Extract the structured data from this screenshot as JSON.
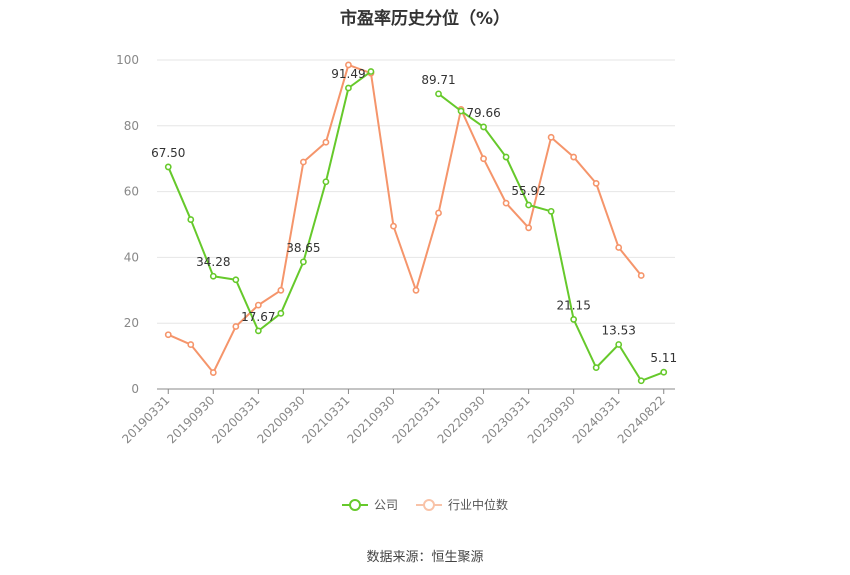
{
  "chart_data": {
    "type": "line",
    "title": "市盈率历史分位（%）",
    "ylim": [
      0,
      100
    ],
    "yticks": [
      0,
      20,
      40,
      60,
      80,
      100
    ],
    "grid": true,
    "legend_position": "bottom",
    "x_tick_labels": [
      "20190331",
      "20190930",
      "20200331",
      "20200930",
      "20210331",
      "20210930",
      "20220331",
      "20220930",
      "20230331",
      "20230930",
      "20240331",
      "20240822"
    ],
    "x_tick_indices": [
      0,
      2,
      4,
      6,
      8,
      10,
      12,
      14,
      16,
      18,
      20,
      22
    ],
    "point_count": 23,
    "series": [
      {
        "name": "公司",
        "color": "#66c92b",
        "values": [
          67.5,
          51.5,
          34.28,
          33.2,
          17.67,
          23.0,
          38.65,
          63.0,
          91.49,
          96.5,
          null,
          null,
          89.71,
          84.5,
          79.66,
          70.5,
          55.92,
          54.0,
          21.15,
          6.5,
          13.53,
          2.5,
          5.11
        ],
        "labels": [
          {
            "index": 0,
            "text": "67.50"
          },
          {
            "index": 2,
            "text": "34.28"
          },
          {
            "index": 4,
            "text": "17.67"
          },
          {
            "index": 6,
            "text": "38.65"
          },
          {
            "index": 8,
            "text": "91.49"
          },
          {
            "index": 12,
            "text": "89.71"
          },
          {
            "index": 14,
            "text": "79.66"
          },
          {
            "index": 16,
            "text": "55.92"
          },
          {
            "index": 18,
            "text": "21.15"
          },
          {
            "index": 20,
            "text": "13.53"
          },
          {
            "index": 22,
            "text": "5.11"
          }
        ]
      },
      {
        "name": "行业中位数",
        "color": "#f5956b",
        "values": [
          16.5,
          13.5,
          5.0,
          19.0,
          25.5,
          30.0,
          69.0,
          75.0,
          98.5,
          96.0,
          49.5,
          30.0,
          53.5,
          85.0,
          70.0,
          56.5,
          49.0,
          76.5,
          70.5,
          62.5,
          43.0,
          34.5,
          null
        ]
      }
    ]
  },
  "legend": {
    "items": [
      {
        "label": "公司",
        "color": "#66c92b"
      },
      {
        "label": "行业中位数",
        "color": "#f5956b"
      }
    ]
  },
  "footer": {
    "source": "数据来源：恒生聚源"
  }
}
